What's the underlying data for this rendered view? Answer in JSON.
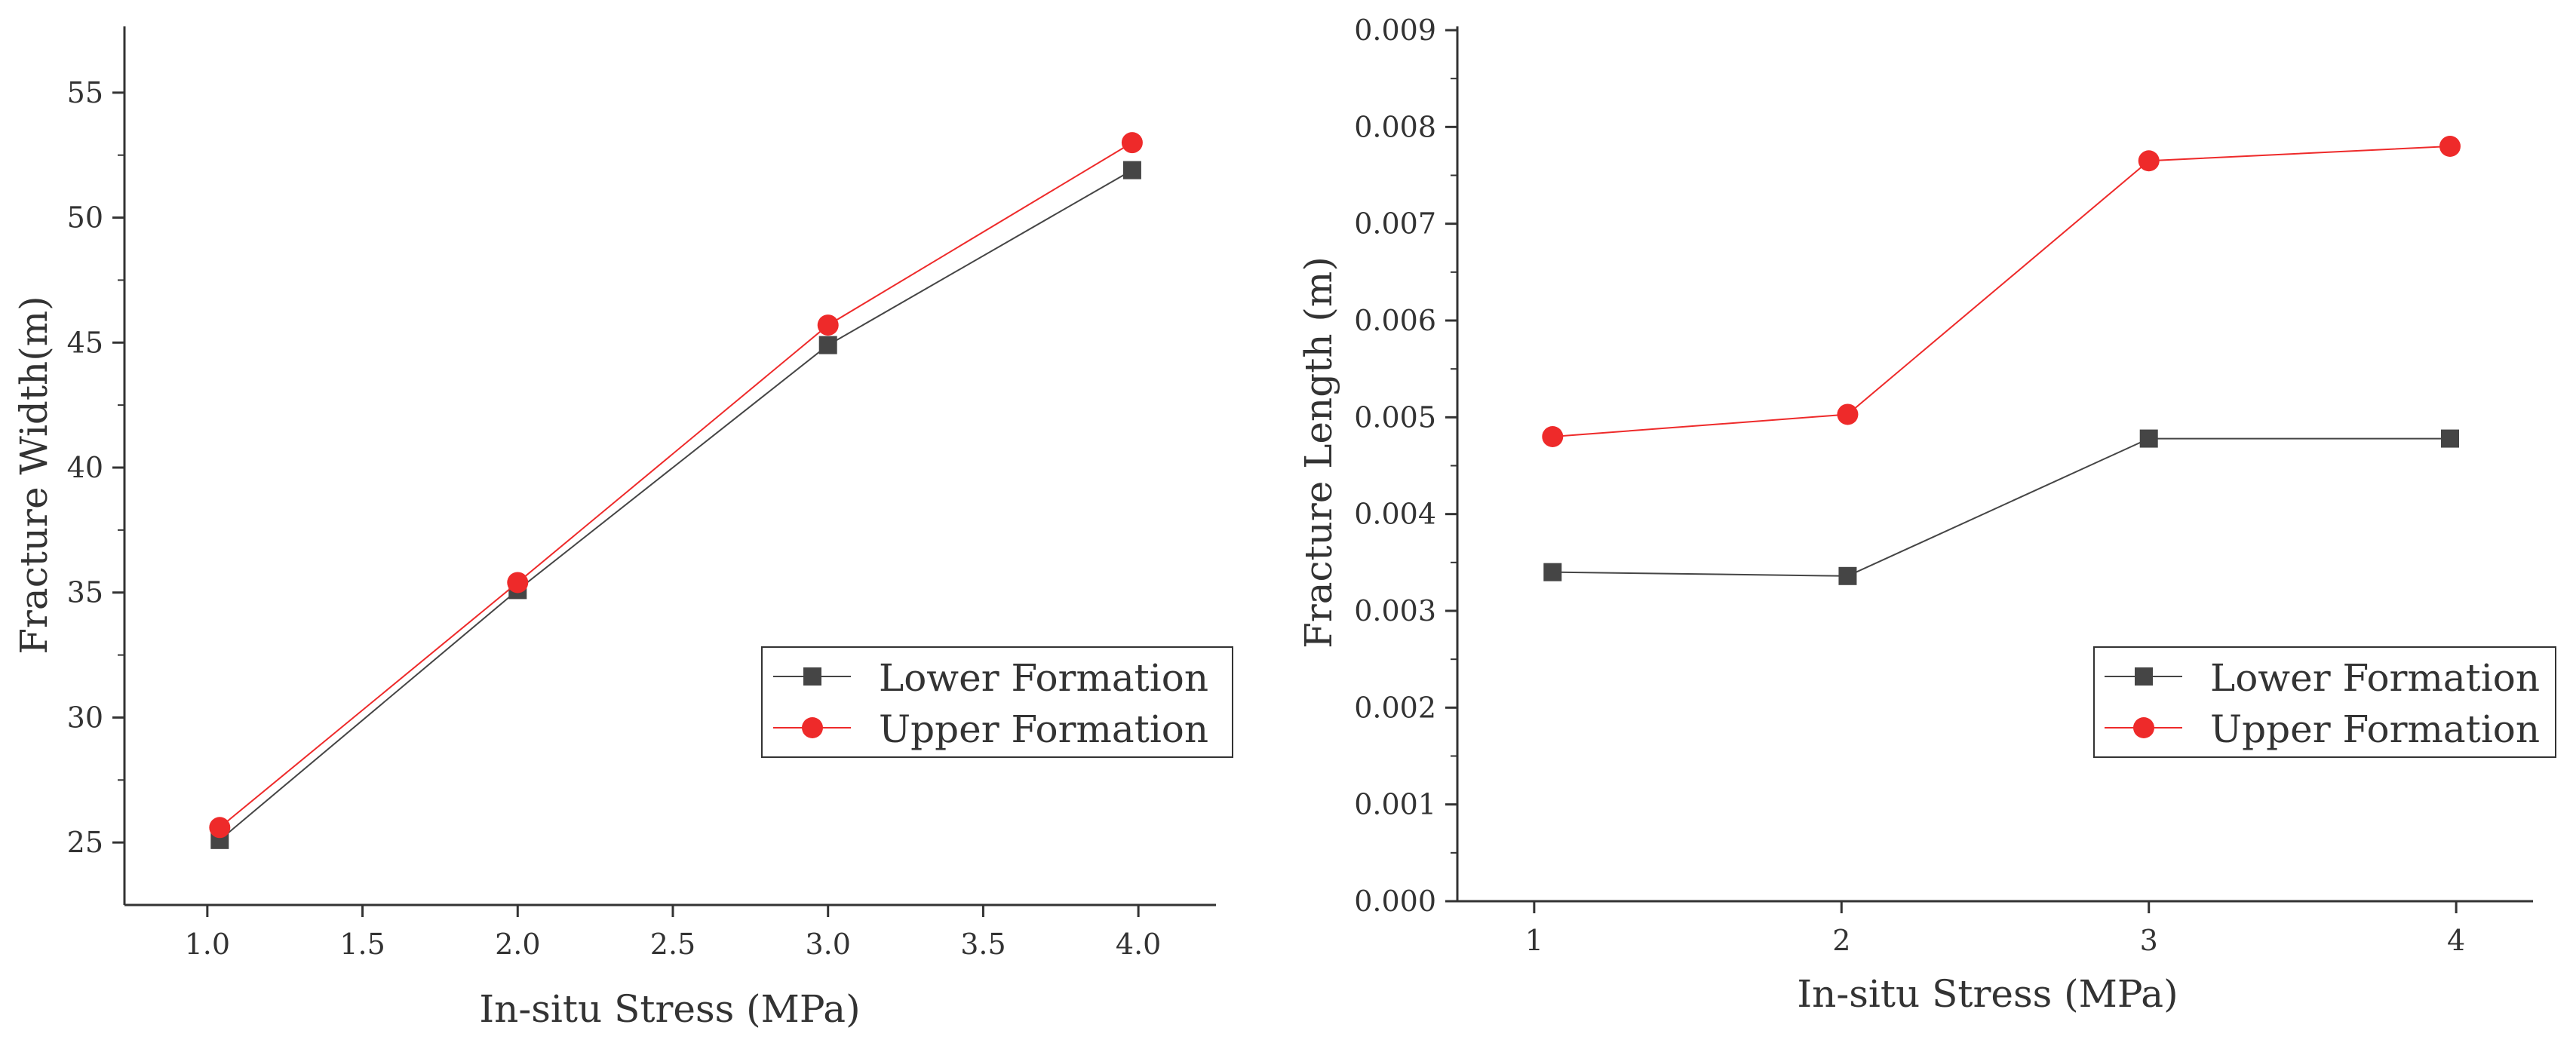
{
  "colors": {
    "lower": "#454545",
    "upper": "#ee2a2a",
    "axis": "#333333"
  },
  "chart_data": [
    {
      "type": "line",
      "title": "",
      "xlabel": "In-situ Stress (MPa)",
      "ylabel": "Fracture Width(m)",
      "x_ticks": [
        1.0,
        1.5,
        2.0,
        2.5,
        3.0,
        3.5,
        4.0
      ],
      "x_tick_labels": [
        "1.0",
        "1.5",
        "2.0",
        "2.5",
        "3.0",
        "3.5",
        "4.0"
      ],
      "y_ticks": [
        25,
        30,
        35,
        40,
        45,
        50,
        55
      ],
      "y_tick_labels": [
        "25",
        "30",
        "35",
        "40",
        "45",
        "50",
        "55"
      ],
      "xlim": [
        0.75,
        4.25
      ],
      "ylim": [
        22.5,
        57.5
      ],
      "legend_position": "lower-right",
      "series": [
        {
          "name": "Lower Formation",
          "marker": "square",
          "x": [
            1.04,
            2.0,
            3.0,
            3.98
          ],
          "values": [
            25.1,
            35.1,
            44.9,
            51.9
          ]
        },
        {
          "name": "Upper Formation",
          "marker": "circle",
          "x": [
            1.04,
            2.0,
            3.0,
            3.98
          ],
          "values": [
            25.6,
            35.4,
            45.7,
            53.0
          ]
        }
      ]
    },
    {
      "type": "line",
      "title": "",
      "xlabel": "In-situ Stress (MPa)",
      "ylabel": "Fracture Length (m)",
      "x_ticks": [
        1,
        2,
        3,
        4
      ],
      "x_tick_labels": [
        "1",
        "2",
        "3",
        "4"
      ],
      "y_ticks": [
        0,
        0.001,
        0.002,
        0.003,
        0.004,
        0.005,
        0.006,
        0.007,
        0.008,
        0.009
      ],
      "y_tick_labels": [
        "0.000",
        "0.001",
        "0.002",
        "0.003",
        "0.004",
        "0.005",
        "0.006",
        "0.007",
        "0.008",
        "0.009"
      ],
      "xlim": [
        0.75,
        4.25
      ],
      "ylim": [
        0,
        0.009
      ],
      "legend_position": "lower-right",
      "series": [
        {
          "name": "Lower Formation",
          "marker": "square",
          "x": [
            1.06,
            2.02,
            3.0,
            3.98
          ],
          "values": [
            0.0034,
            0.00336,
            0.00478,
            0.00478
          ]
        },
        {
          "name": "Upper Formation",
          "marker": "circle",
          "x": [
            1.06,
            2.02,
            3.0,
            3.98
          ],
          "values": [
            0.0048,
            0.00503,
            0.00765,
            0.0078
          ]
        }
      ]
    }
  ]
}
